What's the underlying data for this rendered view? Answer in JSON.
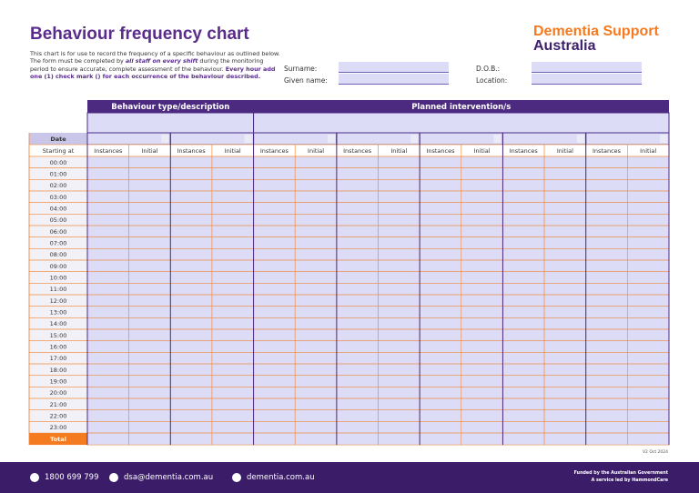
{
  "header": {
    "title": "Behaviour frequency chart",
    "description": {
      "intro": "This chart is for use to record the frequency of a specific behaviour as outlined below. The form must be completed by ",
      "emphasis": "all staff on every shift",
      "middle": " during the monitoring period to ensure accurate, complete assessment of the behaviour. ",
      "instruction": "Every hour add one (1) check mark () for each occurrence of the behaviour described."
    },
    "logo": {
      "line1": "Dementia Support",
      "line2": "Australia"
    }
  },
  "form_fields": [
    {
      "label": "Surname:"
    },
    {
      "label": "Given name:"
    },
    {
      "label": "D.O.B.:"
    },
    {
      "label": "Location:"
    }
  ],
  "table": {
    "group_headers": [
      "Behaviour type/description",
      "Planned intervention/s"
    ],
    "date_label": "Date",
    "time_label": "Starting at",
    "column_headers": [
      "Instances",
      "Initial",
      "Instances",
      "Initial",
      "Instances",
      "Initial",
      "Instances",
      "Initial",
      "Instances",
      "Initial",
      "Instances",
      "Initial",
      "Instances",
      "Initial"
    ],
    "rows": [
      "00:00",
      "01:00",
      "02:00",
      "03:00",
      "04:00",
      "05:00",
      "06:00",
      "07:00",
      "08:00",
      "09:00",
      "10:00",
      "11:00",
      "12:00",
      "13:00",
      "14:00",
      "15:00",
      "16:00",
      "17:00",
      "18:00",
      "19:00",
      "20:00",
      "21:00",
      "22:00",
      "23:00"
    ],
    "total_label": "Total"
  },
  "version": "V2 Oct 2024",
  "footer": {
    "contacts": [
      "1800 699 799",
      "dsa@dementia.com.au",
      "dementia.com.au"
    ],
    "funding": [
      "Funded by the Australian Government",
      "A service led by HammondCare"
    ]
  }
}
